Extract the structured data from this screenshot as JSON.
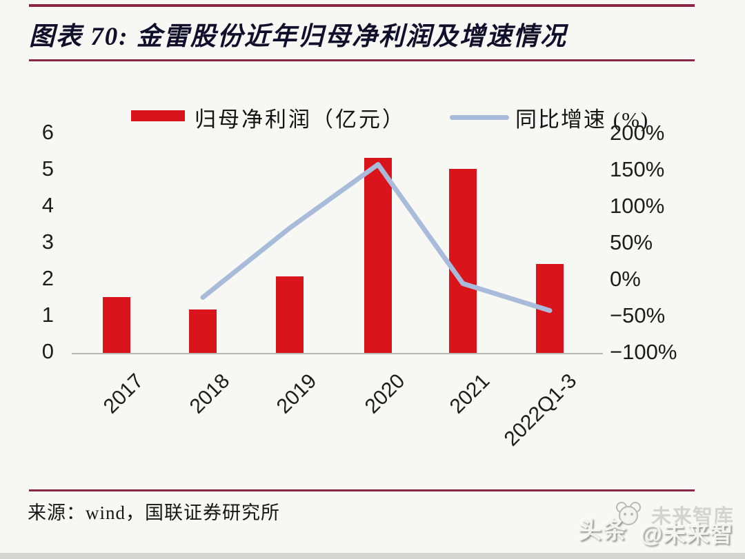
{
  "figure": {
    "title": "图表 70: 金雷股份近年归母净利润及增速情况",
    "source": "来源：wind，国联证券研究所",
    "watermark": {
      "prefix": "头条",
      "handle": "@未来智库",
      "ghost": "未来智库",
      "icon": "panda-face-icon"
    },
    "accent_rule_color": "#8c2546",
    "background_color": "#f7f7f4"
  },
  "chart_data": {
    "type": "bar+line combo",
    "title": "金雷股份近年归母净利润及增速情况",
    "categories": [
      "2017",
      "2018",
      "2019",
      "2020",
      "2021",
      "2022Q1-3"
    ],
    "series": [
      {
        "name": "归母净利润（亿元）",
        "type": "bar",
        "axis": "left",
        "color": "#d9151b",
        "values": [
          1.5,
          1.15,
          2.05,
          5.3,
          5.0,
          2.4
        ]
      },
      {
        "name": "同比增速 (%)",
        "type": "line",
        "axis": "right",
        "color": "#a9bbdb",
        "values": [
          null,
          -25,
          70,
          157,
          -6,
          -43
        ]
      }
    ],
    "left_axis": {
      "tick_labels": [
        "0",
        "1",
        "2",
        "3",
        "4",
        "5",
        "6"
      ],
      "tick_values": [
        0,
        1,
        2,
        3,
        4,
        5,
        6
      ],
      "range": [
        0,
        6
      ]
    },
    "right_axis": {
      "tick_labels": [
        "−100%",
        "−50%",
        "0%",
        "50%",
        "100%",
        "150%",
        "200%"
      ],
      "tick_values": [
        -100,
        -50,
        0,
        50,
        100,
        150,
        200
      ],
      "range": [
        -100,
        200
      ]
    },
    "legend": [
      {
        "label": "归母净利润（亿元）",
        "swatch": "bar"
      },
      {
        "label": "同比增速 (%)",
        "swatch": "line"
      }
    ],
    "grid": "off",
    "legend_position": "top"
  }
}
